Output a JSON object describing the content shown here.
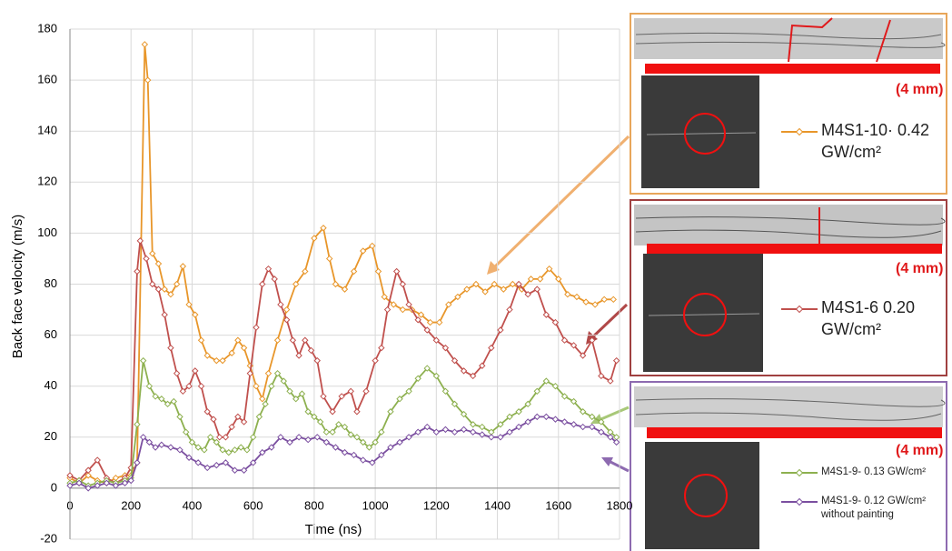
{
  "chart_data": {
    "type": "line",
    "x_label": "Time (ns)",
    "y_label": "Back face velocity (m/s)",
    "xlim": [
      0,
      1800
    ],
    "xticks": [
      0,
      200,
      400,
      600,
      800,
      1000,
      1200,
      1400,
      1600,
      1800
    ],
    "ylim": [
      -20,
      180
    ],
    "yticks": [
      -20,
      0,
      20,
      40,
      60,
      80,
      100,
      120,
      140,
      160,
      180
    ],
    "grid": true,
    "annotations": [
      "(4 mm)",
      "(4 mm)",
      "(4 mm)"
    ],
    "series": [
      {
        "name": "M4S1-10· 0.42 GW/cm²",
        "color": "#e8962a",
        "x": [
          0,
          30,
          60,
          90,
          120,
          150,
          180,
          200,
          220,
          245,
          255,
          270,
          290,
          310,
          330,
          350,
          370,
          390,
          410,
          430,
          450,
          480,
          500,
          530,
          550,
          570,
          590,
          610,
          630,
          650,
          680,
          710,
          740,
          770,
          800,
          830,
          850,
          870,
          900,
          930,
          960,
          990,
          1010,
          1030,
          1060,
          1090,
          1120,
          1150,
          1180,
          1210,
          1240,
          1270,
          1300,
          1330,
          1360,
          1390,
          1420,
          1450,
          1480,
          1510,
          1540,
          1570,
          1600,
          1630,
          1660,
          1690,
          1720,
          1750,
          1780
        ],
        "values": [
          4,
          2,
          5,
          3,
          2,
          4,
          5,
          5,
          10,
          174,
          160,
          92,
          88,
          78,
          76,
          80,
          87,
          72,
          68,
          58,
          52,
          50,
          50,
          53,
          58,
          55,
          48,
          40,
          35,
          45,
          58,
          70,
          80,
          85,
          98,
          102,
          90,
          80,
          78,
          85,
          93,
          95,
          85,
          75,
          72,
          70,
          70,
          68,
          65,
          65,
          72,
          75,
          78,
          80,
          77,
          80,
          78,
          80,
          78,
          82,
          82,
          86,
          82,
          76,
          75,
          73,
          72,
          74,
          74
        ]
      },
      {
        "name": "M4S1-6 0.20 GW/cm²",
        "color": "#c0504d",
        "x": [
          0,
          30,
          60,
          90,
          120,
          150,
          180,
          200,
          220,
          230,
          250,
          270,
          290,
          310,
          330,
          350,
          370,
          390,
          410,
          430,
          450,
          470,
          490,
          510,
          530,
          550,
          570,
          590,
          610,
          630,
          650,
          670,
          690,
          710,
          730,
          750,
          770,
          790,
          810,
          830,
          860,
          890,
          920,
          940,
          970,
          1000,
          1020,
          1040,
          1070,
          1090,
          1110,
          1140,
          1170,
          1200,
          1230,
          1260,
          1290,
          1320,
          1350,
          1380,
          1410,
          1440,
          1470,
          1500,
          1530,
          1560,
          1590,
          1620,
          1650,
          1680,
          1710,
          1740,
          1770,
          1790
        ],
        "values": [
          5,
          3,
          7,
          11,
          4,
          2,
          4,
          8,
          85,
          97,
          90,
          80,
          78,
          68,
          55,
          45,
          38,
          40,
          46,
          40,
          30,
          27,
          20,
          20,
          24,
          28,
          26,
          45,
          63,
          80,
          86,
          82,
          72,
          66,
          58,
          52,
          58,
          54,
          50,
          36,
          30,
          36,
          38,
          30,
          38,
          50,
          55,
          70,
          85,
          80,
          72,
          66,
          62,
          58,
          55,
          50,
          46,
          44,
          48,
          55,
          62,
          70,
          80,
          76,
          78,
          68,
          65,
          58,
          56,
          52,
          58,
          44,
          42,
          50
        ]
      },
      {
        "name": "M4S1-9- 0.13 GW/cm²",
        "color": "#8db04f",
        "x": [
          0,
          30,
          60,
          90,
          120,
          150,
          180,
          200,
          220,
          240,
          260,
          280,
          300,
          320,
          340,
          360,
          380,
          400,
          420,
          440,
          460,
          480,
          500,
          520,
          540,
          560,
          580,
          600,
          620,
          640,
          660,
          680,
          700,
          720,
          740,
          760,
          780,
          800,
          820,
          840,
          860,
          880,
          900,
          920,
          940,
          960,
          980,
          1000,
          1020,
          1050,
          1080,
          1110,
          1140,
          1170,
          1200,
          1230,
          1260,
          1290,
          1320,
          1350,
          1380,
          1410,
          1440,
          1470,
          1500,
          1530,
          1560,
          1590,
          1620,
          1650,
          1680,
          1710,
          1740,
          1770,
          1790
        ],
        "values": [
          2,
          3,
          1,
          2,
          3,
          2,
          3,
          4,
          25,
          50,
          40,
          36,
          35,
          33,
          34,
          28,
          22,
          18,
          16,
          15,
          20,
          18,
          15,
          14,
          15,
          16,
          15,
          20,
          28,
          33,
          40,
          45,
          42,
          38,
          35,
          37,
          30,
          28,
          26,
          22,
          22,
          25,
          24,
          21,
          20,
          18,
          16,
          18,
          22,
          30,
          35,
          38,
          43,
          47,
          44,
          38,
          33,
          29,
          25,
          24,
          22,
          25,
          28,
          30,
          33,
          38,
          42,
          40,
          36,
          34,
          30,
          28,
          26,
          22,
          20
        ]
      },
      {
        "name": "M4S1-9- 0.12 GW/cm² without painting",
        "color": "#7b4fa0",
        "x": [
          0,
          30,
          60,
          90,
          120,
          150,
          180,
          200,
          220,
          240,
          260,
          280,
          300,
          330,
          360,
          390,
          420,
          450,
          480,
          510,
          540,
          570,
          600,
          630,
          660,
          690,
          720,
          750,
          780,
          810,
          840,
          870,
          900,
          930,
          960,
          990,
          1020,
          1050,
          1080,
          1110,
          1140,
          1170,
          1200,
          1230,
          1260,
          1290,
          1320,
          1350,
          1380,
          1410,
          1440,
          1470,
          1500,
          1530,
          1560,
          1590,
          1620,
          1650,
          1680,
          1710,
          1740,
          1770,
          1790
        ],
        "values": [
          1,
          2,
          0,
          1,
          2,
          1,
          2,
          3,
          10,
          20,
          18,
          16,
          17,
          16,
          15,
          12,
          10,
          8,
          9,
          10,
          7,
          7,
          10,
          14,
          16,
          20,
          18,
          20,
          19,
          20,
          18,
          16,
          14,
          13,
          11,
          10,
          13,
          16,
          18,
          20,
          22,
          24,
          22,
          23,
          22,
          23,
          22,
          21,
          20,
          20,
          22,
          24,
          26,
          28,
          28,
          27,
          26,
          25,
          24,
          24,
          22,
          20,
          18
        ]
      }
    ]
  }
}
